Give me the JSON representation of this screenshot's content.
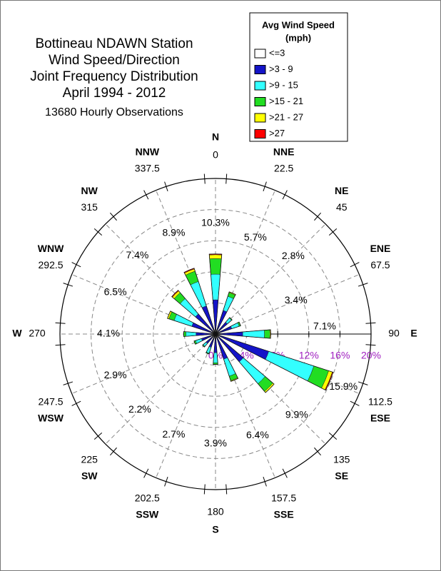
{
  "chart_data": {
    "type": "wind-rose",
    "title": [
      "Bottineau NDAWN Station",
      "Wind Speed/Direction",
      "Joint Frequency Distribution",
      "April 1994 - 2012"
    ],
    "subtitle": "13680 Hourly Observations",
    "legend_title": [
      "Avg Wind Speed",
      "(mph)"
    ],
    "categories": [
      "N",
      "NNE",
      "NE",
      "ENE",
      "E",
      "ESE",
      "SE",
      "SSE",
      "S",
      "SSW",
      "SW",
      "WSW",
      "W",
      "WNW",
      "NW",
      "NNW"
    ],
    "angles": [
      0,
      22.5,
      45,
      67.5,
      90,
      112.5,
      135,
      157.5,
      180,
      202.5,
      225,
      247.5,
      270,
      292.5,
      315,
      337.5
    ],
    "rlim": [
      0,
      20
    ],
    "rticks": [
      {
        "value": 0,
        "label": "0%"
      },
      {
        "value": 4,
        "label": "4%"
      },
      {
        "value": 8,
        "label": "8%"
      },
      {
        "value": 12,
        "label": "12%"
      },
      {
        "value": 16,
        "label": "16%"
      },
      {
        "value": 20,
        "label": "20%"
      }
    ],
    "grid": true,
    "series": [
      {
        "name": "<=3",
        "color": "#ffffff",
        "values": [
          0.2,
          0.2,
          0.2,
          0.2,
          0.2,
          0.2,
          0.2,
          0.2,
          0.2,
          0.2,
          0.2,
          0.2,
          0.2,
          0.2,
          0.2,
          0.2
        ]
      },
      {
        "name": ">3 - 9",
        "color": "#1414c8",
        "values": [
          4.2,
          3.0,
          1.8,
          2.0,
          3.3,
          7.0,
          4.5,
          3.2,
          2.2,
          1.6,
          1.4,
          1.7,
          2.3,
          3.0,
          3.2,
          3.6
        ]
      },
      {
        "name": ">9 - 15",
        "color": "#33ffff",
        "values": [
          3.3,
          1.9,
          0.7,
          1.0,
          2.8,
          6.1,
          3.7,
          2.3,
          1.3,
          0.8,
          0.5,
          0.8,
          1.3,
          2.4,
          2.6,
          3.3
        ]
      },
      {
        "name": ">15 - 21",
        "color": "#22dd22",
        "values": [
          2.0,
          0.5,
          0.1,
          0.2,
          0.7,
          2.0,
          1.3,
          0.6,
          0.2,
          0.1,
          0.1,
          0.2,
          0.3,
          0.7,
          1.0,
          1.4
        ]
      },
      {
        "name": ">21 - 27",
        "color": "#ffff00",
        "values": [
          0.5,
          0.1,
          0.0,
          0.0,
          0.1,
          0.5,
          0.2,
          0.1,
          0.0,
          0.0,
          0.0,
          0.0,
          0.0,
          0.2,
          0.3,
          0.3
        ]
      },
      {
        "name": ">27",
        "color": "#ff0000",
        "values": [
          0.1,
          0.0,
          0.0,
          0.0,
          0.0,
          0.1,
          0.0,
          0.0,
          0.0,
          0.0,
          0.0,
          0.0,
          0.0,
          0.0,
          0.1,
          0.1
        ]
      }
    ],
    "direction_totals": {
      "values": [
        10.3,
        5.7,
        2.8,
        3.4,
        7.1,
        15.9,
        9.9,
        6.4,
        3.9,
        2.7,
        2.2,
        2.9,
        4.1,
        6.5,
        7.4,
        8.9
      ],
      "value_labels": [
        "10.3%",
        "5.7%",
        "2.8%",
        "3.4%",
        "7.1%",
        "15.9%",
        "9.9%",
        "6.4%",
        "3.9%",
        "2.7%",
        "2.2%",
        "2.9%",
        "4.1%",
        "6.5%",
        "7.4%",
        "8.9%"
      ]
    }
  }
}
